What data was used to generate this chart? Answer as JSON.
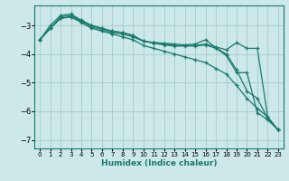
{
  "xlabel": "Humidex (Indice chaleur)",
  "ylabel": "",
  "bg_color": "#cce8e8",
  "grid_color": "#aacfcf",
  "line_color": "#1a7a6e",
  "xlim": [
    -0.5,
    23.5
  ],
  "ylim": [
    -7.3,
    -2.3
  ],
  "yticks": [
    -7,
    -6,
    -5,
    -4,
    -3
  ],
  "xticks": [
    0,
    1,
    2,
    3,
    4,
    5,
    6,
    7,
    8,
    9,
    10,
    11,
    12,
    13,
    14,
    15,
    16,
    17,
    18,
    19,
    20,
    21,
    22,
    23
  ],
  "lines": [
    {
      "x": [
        0,
        1,
        2,
        3,
        4,
        5,
        6,
        7,
        8,
        9,
        10,
        11,
        12,
        13,
        14,
        15,
        16,
        17,
        18,
        19,
        20,
        21,
        22,
        23
      ],
      "y": [
        -3.5,
        -3.1,
        -2.75,
        -2.7,
        -2.85,
        -3.05,
        -3.15,
        -3.25,
        -3.3,
        -3.4,
        -3.55,
        -3.6,
        -3.65,
        -3.7,
        -3.7,
        -3.7,
        -3.65,
        -3.75,
        -3.85,
        -3.6,
        -3.8,
        -3.8,
        -6.2,
        -6.65
      ]
    },
    {
      "x": [
        0,
        1,
        2,
        3,
        4,
        5,
        6,
        7,
        8,
        9,
        10,
        11,
        12,
        13,
        14,
        15,
        16,
        17,
        18,
        19,
        20,
        21,
        22,
        23
      ],
      "y": [
        -3.5,
        -3.1,
        -2.75,
        -2.7,
        -2.9,
        -3.1,
        -3.2,
        -3.3,
        -3.4,
        -3.5,
        -3.7,
        -3.8,
        -3.9,
        -4.0,
        -4.1,
        -4.2,
        -4.3,
        -4.5,
        -4.7,
        -5.1,
        -5.55,
        -5.9,
        -6.2,
        -6.65
      ]
    },
    {
      "x": [
        0,
        1,
        2,
        3,
        4,
        5,
        6,
        7,
        8,
        9,
        10,
        11,
        12,
        13,
        14,
        15,
        16,
        17,
        18,
        19,
        20,
        21,
        22,
        23
      ],
      "y": [
        -3.5,
        -3.0,
        -2.65,
        -2.6,
        -2.82,
        -3.0,
        -3.1,
        -3.2,
        -3.25,
        -3.35,
        -3.55,
        -3.6,
        -3.62,
        -3.65,
        -3.68,
        -3.65,
        -3.5,
        -3.78,
        -4.0,
        -4.55,
        -5.3,
        -5.55,
        -6.25,
        -6.65
      ]
    },
    {
      "x": [
        0,
        1,
        2,
        3,
        4,
        5,
        6,
        7,
        8,
        9,
        10,
        11,
        12,
        13,
        14,
        15,
        16,
        17,
        18,
        19,
        20,
        21,
        22,
        23
      ],
      "y": [
        -3.5,
        -3.1,
        -2.7,
        -2.65,
        -2.82,
        -3.0,
        -3.1,
        -3.2,
        -3.25,
        -3.35,
        -3.55,
        -3.62,
        -3.68,
        -3.72,
        -3.72,
        -3.72,
        -3.68,
        -3.8,
        -4.05,
        -4.65,
        -4.65,
        -6.05,
        -6.3,
        -6.65
      ]
    }
  ]
}
